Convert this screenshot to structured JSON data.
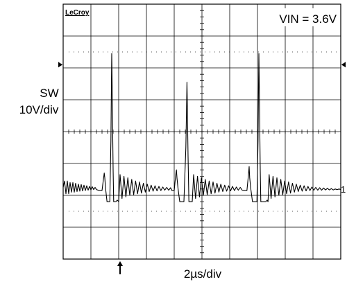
{
  "chart_data": {
    "type": "line",
    "instrument": "LeCroy",
    "annotation": "VIN = 3.6V",
    "ylabel_line1": "SW",
    "ylabel_line2": "10V/div",
    "xlabel": "2µs/div",
    "channel_marker": "1",
    "grid": true,
    "x_divisions": 10,
    "y_divisions": 8,
    "x_units": "div",
    "y_units": "div",
    "xlim": [
      0,
      10
    ],
    "ylim": [
      -4,
      4
    ],
    "baseline_level_div": -1.85,
    "trigger_marker_div": 2.05,
    "level_arrow_div": 2.1,
    "series": [
      {
        "values": [
          [
            0.0,
            -1.75
          ],
          [
            0.05,
            -1.55
          ],
          [
            0.1,
            -1.95
          ],
          [
            0.15,
            -1.55
          ],
          [
            0.2,
            -1.95
          ],
          [
            0.25,
            -1.6
          ],
          [
            0.3,
            -1.9
          ],
          [
            0.35,
            -1.6
          ],
          [
            0.4,
            -1.9
          ],
          [
            0.45,
            -1.62
          ],
          [
            0.5,
            -1.88
          ],
          [
            0.55,
            -1.65
          ],
          [
            0.6,
            -1.87
          ],
          [
            0.65,
            -1.66
          ],
          [
            0.7,
            -1.86
          ],
          [
            0.75,
            -1.68
          ],
          [
            0.8,
            -1.85
          ],
          [
            0.85,
            -1.7
          ],
          [
            0.9,
            -1.84
          ],
          [
            0.95,
            -1.72
          ],
          [
            1.0,
            -1.83
          ],
          [
            1.05,
            -1.73
          ],
          [
            1.1,
            -1.82
          ],
          [
            1.15,
            -1.75
          ],
          [
            1.2,
            -1.82
          ],
          [
            1.3,
            -1.85
          ],
          [
            1.4,
            -1.85
          ],
          [
            1.45,
            -1.5
          ],
          [
            1.48,
            -1.3
          ],
          [
            1.5,
            -1.45
          ],
          [
            1.53,
            -1.8
          ],
          [
            1.58,
            -2.2
          ],
          [
            1.62,
            -2.2
          ],
          [
            1.68,
            -2.2
          ],
          [
            1.72,
            -0.3
          ],
          [
            1.74,
            1.6
          ],
          [
            1.75,
            2.45
          ],
          [
            1.76,
            1.8
          ],
          [
            1.78,
            0.3
          ],
          [
            1.8,
            -1.2
          ],
          [
            1.82,
            -2.2
          ],
          [
            1.9,
            -2.2
          ],
          [
            1.95,
            -2.15
          ],
          [
            2.0,
            -2.2
          ],
          [
            2.05,
            -1.35
          ],
          [
            2.12,
            -2.1
          ],
          [
            2.19,
            -1.4
          ],
          [
            2.26,
            -2.05
          ],
          [
            2.33,
            -1.45
          ],
          [
            2.4,
            -2.0
          ],
          [
            2.47,
            -1.5
          ],
          [
            2.54,
            -1.98
          ],
          [
            2.61,
            -1.55
          ],
          [
            2.68,
            -1.95
          ],
          [
            2.75,
            -1.58
          ],
          [
            2.82,
            -1.93
          ],
          [
            2.89,
            -1.62
          ],
          [
            2.96,
            -1.9
          ],
          [
            3.03,
            -1.65
          ],
          [
            3.1,
            -1.88
          ],
          [
            3.17,
            -1.68
          ],
          [
            3.24,
            -1.87
          ],
          [
            3.31,
            -1.7
          ],
          [
            3.38,
            -1.86
          ],
          [
            3.45,
            -1.72
          ],
          [
            3.52,
            -1.85
          ],
          [
            3.59,
            -1.74
          ],
          [
            3.66,
            -1.84
          ],
          [
            3.73,
            -1.75
          ],
          [
            3.8,
            -1.84
          ],
          [
            3.87,
            -1.76
          ],
          [
            3.92,
            -1.85
          ],
          [
            4.0,
            -1.85
          ],
          [
            4.05,
            -1.4
          ],
          [
            4.08,
            -1.2
          ],
          [
            4.1,
            -1.45
          ],
          [
            4.14,
            -1.8
          ],
          [
            4.2,
            -2.2
          ],
          [
            4.35,
            -2.2
          ],
          [
            4.42,
            -0.5
          ],
          [
            4.45,
            1.0
          ],
          [
            4.46,
            1.55
          ],
          [
            4.47,
            1.0
          ],
          [
            4.5,
            -0.8
          ],
          [
            4.53,
            -2.2
          ],
          [
            4.6,
            -2.2
          ],
          [
            4.65,
            -2.2
          ],
          [
            4.7,
            -1.35
          ],
          [
            4.77,
            -2.1
          ],
          [
            4.84,
            -1.4
          ],
          [
            4.91,
            -2.05
          ],
          [
            4.98,
            -1.45
          ],
          [
            5.05,
            -2.0
          ],
          [
            5.12,
            -1.5
          ],
          [
            5.19,
            -1.98
          ],
          [
            5.26,
            -1.55
          ],
          [
            5.33,
            -1.95
          ],
          [
            5.4,
            -1.58
          ],
          [
            5.47,
            -1.93
          ],
          [
            5.54,
            -1.62
          ],
          [
            5.61,
            -1.9
          ],
          [
            5.68,
            -1.65
          ],
          [
            5.75,
            -1.88
          ],
          [
            5.82,
            -1.68
          ],
          [
            5.89,
            -1.87
          ],
          [
            5.96,
            -1.7
          ],
          [
            6.03,
            -1.86
          ],
          [
            6.1,
            -1.72
          ],
          [
            6.17,
            -1.85
          ],
          [
            6.24,
            -1.74
          ],
          [
            6.31,
            -1.84
          ],
          [
            6.38,
            -1.75
          ],
          [
            6.45,
            -1.84
          ],
          [
            6.55,
            -1.85
          ],
          [
            6.62,
            -1.85
          ],
          [
            6.67,
            -1.4
          ],
          [
            6.7,
            -1.1
          ],
          [
            6.72,
            -1.45
          ],
          [
            6.76,
            -1.8
          ],
          [
            6.82,
            -2.2
          ],
          [
            6.98,
            -2.2
          ],
          [
            7.02,
            -0.3
          ],
          [
            7.04,
            1.6
          ],
          [
            7.05,
            2.45
          ],
          [
            7.06,
            1.8
          ],
          [
            7.08,
            0.3
          ],
          [
            7.1,
            -1.2
          ],
          [
            7.12,
            -2.2
          ],
          [
            7.2,
            -2.2
          ],
          [
            7.3,
            -2.2
          ],
          [
            7.35,
            -2.15
          ],
          [
            7.38,
            -2.2
          ],
          [
            7.42,
            -1.35
          ],
          [
            7.49,
            -2.1
          ],
          [
            7.56,
            -1.4
          ],
          [
            7.63,
            -2.05
          ],
          [
            7.7,
            -1.45
          ],
          [
            7.77,
            -2.0
          ],
          [
            7.84,
            -1.5
          ],
          [
            7.91,
            -1.98
          ],
          [
            7.98,
            -1.55
          ],
          [
            8.05,
            -1.95
          ],
          [
            8.12,
            -1.58
          ],
          [
            8.19,
            -1.93
          ],
          [
            8.26,
            -1.62
          ],
          [
            8.33,
            -1.9
          ],
          [
            8.4,
            -1.65
          ],
          [
            8.47,
            -1.88
          ],
          [
            8.54,
            -1.68
          ],
          [
            8.61,
            -1.87
          ],
          [
            8.68,
            -1.7
          ],
          [
            8.75,
            -1.86
          ],
          [
            8.82,
            -1.72
          ],
          [
            8.89,
            -1.85
          ],
          [
            8.96,
            -1.74
          ],
          [
            9.03,
            -1.84
          ],
          [
            9.1,
            -1.75
          ],
          [
            9.17,
            -1.84
          ],
          [
            9.24,
            -1.76
          ],
          [
            9.31,
            -1.84
          ],
          [
            9.38,
            -1.77
          ],
          [
            9.45,
            -1.83
          ],
          [
            9.52,
            -1.78
          ],
          [
            9.59,
            -1.83
          ],
          [
            9.66,
            -1.79
          ],
          [
            9.73,
            -1.83
          ],
          [
            9.8,
            -1.8
          ],
          [
            9.87,
            -1.82
          ],
          [
            9.94,
            -1.8
          ],
          [
            10.0,
            -1.82
          ]
        ]
      }
    ]
  }
}
